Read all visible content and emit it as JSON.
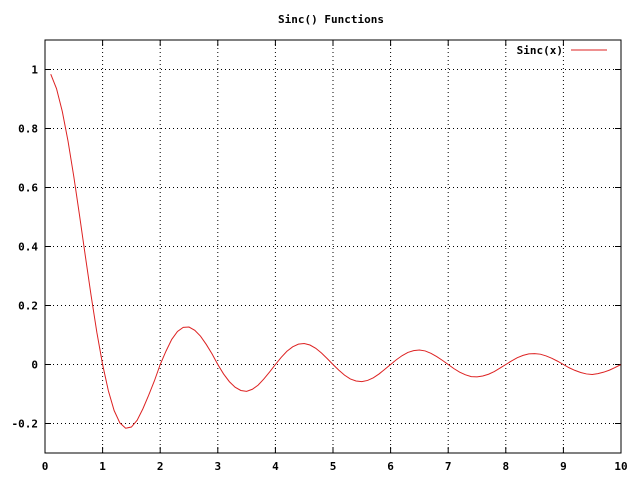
{
  "chart_data": {
    "type": "line",
    "title": "Sinc() Functions",
    "xlabel": "",
    "ylabel": "",
    "xlim": [
      0,
      10
    ],
    "ylim": [
      -0.3,
      1.1
    ],
    "xticks": [
      0,
      1,
      2,
      3,
      4,
      5,
      6,
      7,
      8,
      9,
      10
    ],
    "yticks": [
      -0.2,
      0,
      0.2,
      0.4,
      0.6,
      0.8,
      1
    ],
    "ytick_labels": [
      "-0.2",
      "0",
      "0.2",
      "0.4",
      "0.6",
      "0.8",
      "1"
    ],
    "xtick_labels": [
      "0",
      "1",
      "2",
      "3",
      "4",
      "5",
      "6",
      "7",
      "8",
      "9",
      "10"
    ],
    "grid": true,
    "legend_position": "top-right",
    "series": [
      {
        "name": "Sinc(x)",
        "color": "#dd2222",
        "x": [
          0.1,
          0.2,
          0.3,
          0.4,
          0.5,
          0.6,
          0.7,
          0.8,
          0.9,
          1.0,
          1.1,
          1.2,
          1.3,
          1.4,
          1.5,
          1.6,
          1.7,
          1.8,
          1.9,
          2.0,
          2.1,
          2.2,
          2.3,
          2.4,
          2.5,
          2.6,
          2.7,
          2.8,
          2.9,
          3.0,
          3.1,
          3.2,
          3.3,
          3.4,
          3.5,
          3.6,
          3.7,
          3.8,
          3.9,
          4.0,
          4.1,
          4.2,
          4.3,
          4.4,
          4.5,
          4.6,
          4.7,
          4.8,
          4.9,
          5.0,
          5.1,
          5.2,
          5.3,
          5.4,
          5.5,
          5.6,
          5.7,
          5.8,
          5.9,
          6.0,
          6.1,
          6.2,
          6.3,
          6.4,
          6.5,
          6.6,
          6.7,
          6.8,
          6.9,
          7.0,
          7.1,
          7.2,
          7.3,
          7.4,
          7.5,
          7.6,
          7.7,
          7.8,
          7.9,
          8.0,
          8.1,
          8.2,
          8.3,
          8.4,
          8.5,
          8.6,
          8.7,
          8.8,
          8.9,
          9.0,
          9.1,
          9.2,
          9.3,
          9.4,
          9.5,
          9.6,
          9.7,
          9.8,
          9.9,
          10.0
        ],
        "y": [
          0.984,
          0.935,
          0.858,
          0.757,
          0.637,
          0.505,
          0.368,
          0.234,
          0.109,
          0.0,
          -0.089,
          -0.156,
          -0.198,
          -0.216,
          -0.212,
          -0.189,
          -0.15,
          -0.104,
          -0.055,
          0.0,
          0.045,
          0.085,
          0.112,
          0.126,
          0.127,
          0.116,
          0.096,
          0.068,
          0.036,
          0.0,
          -0.032,
          -0.058,
          -0.077,
          -0.088,
          -0.091,
          -0.084,
          -0.07,
          -0.049,
          -0.025,
          0.0,
          0.024,
          0.045,
          0.06,
          0.069,
          0.071,
          0.066,
          0.055,
          0.039,
          0.02,
          0.0,
          -0.019,
          -0.036,
          -0.049,
          -0.056,
          -0.058,
          -0.054,
          -0.045,
          -0.032,
          -0.016,
          0.0,
          0.016,
          0.03,
          0.041,
          0.047,
          0.049,
          0.046,
          0.038,
          0.027,
          0.014,
          0.0,
          -0.014,
          -0.026,
          -0.035,
          -0.041,
          -0.042,
          -0.039,
          -0.033,
          -0.024,
          -0.012,
          0.0,
          0.012,
          0.023,
          0.031,
          0.036,
          0.037,
          0.035,
          0.029,
          0.021,
          0.011,
          0.0,
          -0.011,
          -0.02,
          -0.027,
          -0.032,
          -0.034,
          -0.031,
          -0.026,
          -0.019,
          -0.01,
          0.0
        ]
      }
    ]
  }
}
